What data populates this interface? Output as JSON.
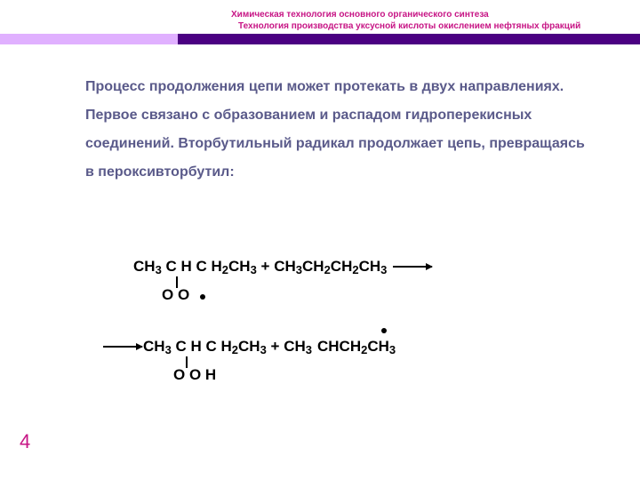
{
  "colors": {
    "header_text": "#c71585",
    "bar_accent": "#e0b0ff",
    "bar_main": "#4b0082",
    "body_text": "#5a5a8a",
    "pagenum": "#c71585",
    "chem_text": "#000000"
  },
  "header": {
    "line1": "Химическая технология основного органического синтеза",
    "line2": "Технология производства уксусной кислоты окислением нефтяных фракций"
  },
  "body": {
    "text": "Процесс продолжения цепи может протекать в двух направлениях. Первое связано с образованием и распадом гидроперекисных соединений. Вторбутильный радикал продолжает цепь, превращаясь в пероксивторбутил:"
  },
  "chem": {
    "line1": {
      "parts": [
        "CH",
        "3",
        " C H C H",
        "2",
        "CH",
        "3",
        " + CH",
        "3",
        "CH",
        "2",
        "CH",
        "2",
        "CH",
        "3"
      ]
    },
    "line1_sub": "O O",
    "line2": {
      "left_parts": [
        "CH",
        "3",
        " C H C H",
        "2",
        "CH",
        "3",
        " + CH",
        "3"
      ],
      "right_parts": [
        "CHCH",
        "2",
        "CH",
        "3"
      ]
    },
    "line2_sub": "O O H"
  },
  "page_number": "4"
}
